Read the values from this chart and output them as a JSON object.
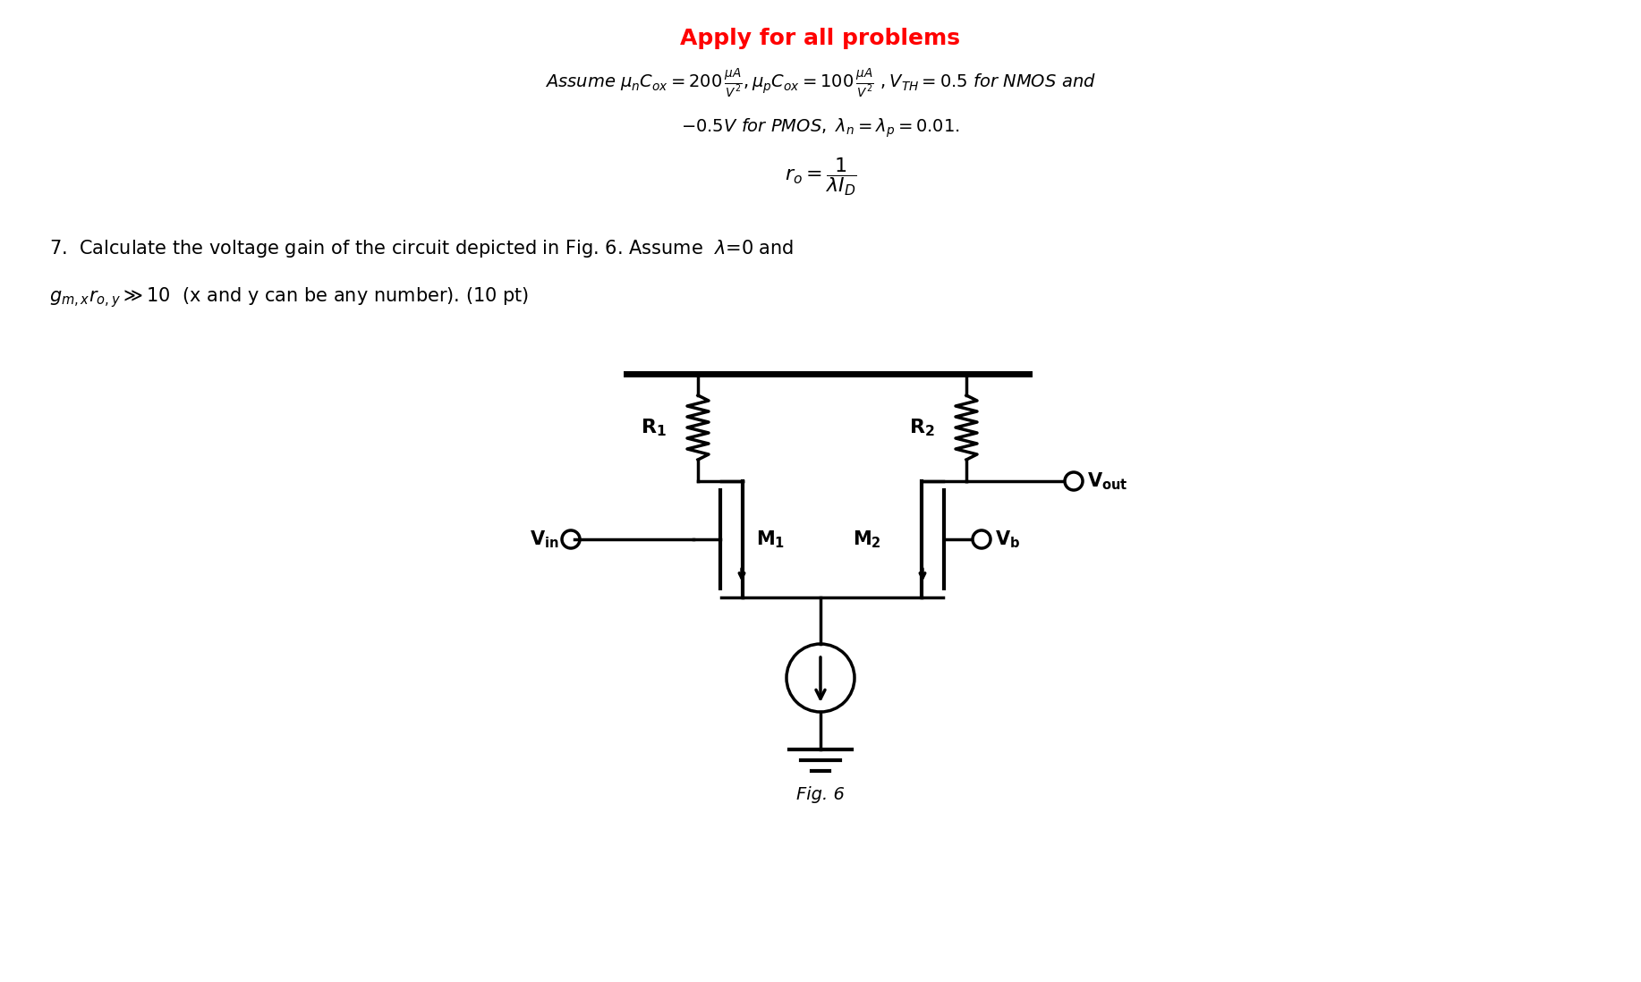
{
  "title_text": "Apply for all problems",
  "title_color": "#FF0000",
  "header_line1": "Assume $\\mu_n C_{ox} = 200\\,\\frac{\\mu A}{V^2}$, $\\mu_p C_{ox} = 100\\,\\frac{\\mu A}{V^2}$, $V_{TH} = 0.5$ for NMOS and",
  "header_line2": "$-0.5V$ for PMOS, $\\lambda_n = \\lambda_p = 0.01$.",
  "ro_formula": "$r_o = \\dfrac{1}{\\lambda I_D}$",
  "problem_text": "7.  Calculate the voltage gain of the circuit depicted in Fig. 6. Assume  $\\lambda$=0 and",
  "problem_text2": "$g_{m,x}r_{o,y} \\gg 10$  (x and y can be any number). (10 pt)",
  "fig_label": "Fig. 6",
  "bg_color": "#ffffff",
  "lw": 2.5
}
